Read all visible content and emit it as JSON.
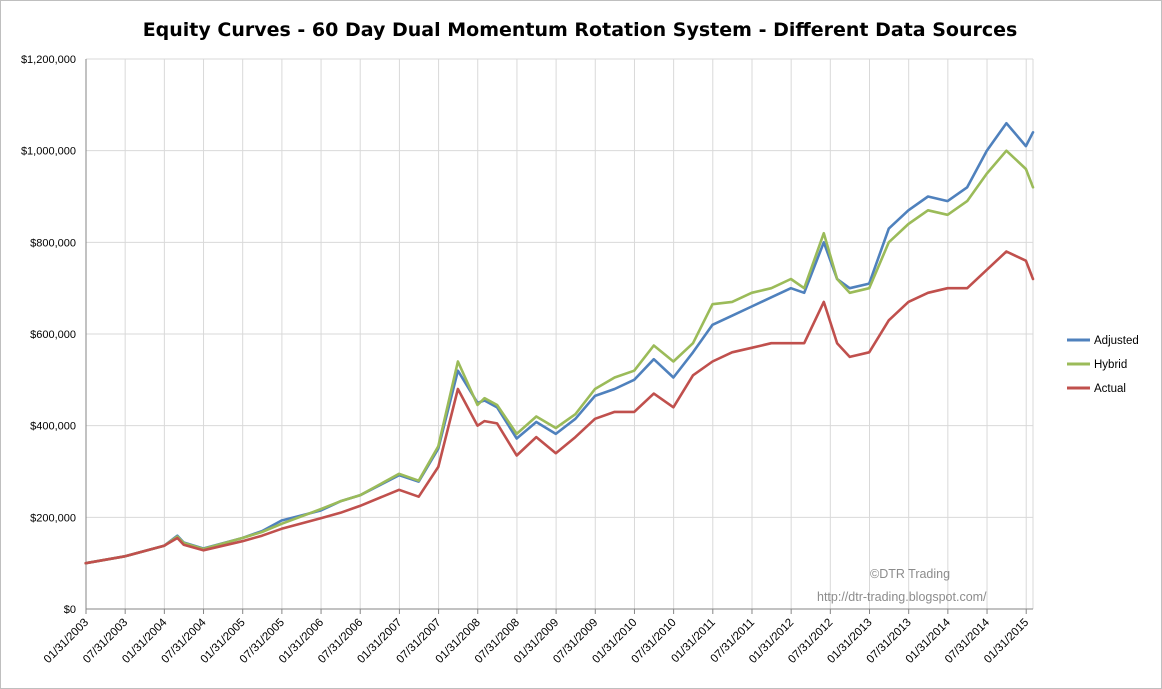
{
  "chart_data": {
    "type": "line",
    "title": "Equity Curves - 60 Day Dual Momentum Rotation System - Different Data Sources",
    "xlabel": "",
    "ylabel": "",
    "ylim": [
      0,
      1200000
    ],
    "yticks": [
      0,
      200000,
      400000,
      600000,
      800000,
      1000000,
      1200000
    ],
    "ytick_labels": [
      "$0",
      "$200,000",
      "$400,000",
      "$600,000",
      "$800,000",
      "$1,000,000",
      "$1,200,000"
    ],
    "xlim": [
      2003.0833,
      2015.17
    ],
    "xticks": [
      2003.0833,
      2003.5833,
      2004.0833,
      2004.5833,
      2005.0833,
      2005.5833,
      2006.0833,
      2006.5833,
      2007.0833,
      2007.5833,
      2008.0833,
      2008.5833,
      2009.0833,
      2009.5833,
      2010.0833,
      2010.5833,
      2011.0833,
      2011.5833,
      2012.0833,
      2012.5833,
      2013.0833,
      2013.5833,
      2014.0833,
      2014.5833,
      2015.0833
    ],
    "xtick_labels": [
      "01/31/2003",
      "07/31/2003",
      "01/31/2004",
      "07/31/2004",
      "01/31/2005",
      "07/31/2005",
      "01/31/2006",
      "07/31/2006",
      "01/31/2007",
      "07/31/2007",
      "01/31/2008",
      "07/31/2008",
      "01/31/2009",
      "07/31/2009",
      "01/31/2010",
      "07/31/2010",
      "01/31/2011",
      "07/31/2011",
      "01/31/2012",
      "07/31/2012",
      "01/31/2013",
      "07/31/2013",
      "01/31/2014",
      "07/31/2014",
      "01/31/2015"
    ],
    "grid": true,
    "legend_position": "right",
    "x": [
      2003.08,
      2003.58,
      2004.08,
      2004.25,
      2004.33,
      2004.58,
      2005.08,
      2005.33,
      2005.58,
      2006.08,
      2006.33,
      2006.58,
      2007.08,
      2007.33,
      2007.58,
      2007.83,
      2008.08,
      2008.17,
      2008.33,
      2008.58,
      2008.83,
      2009.08,
      2009.33,
      2009.58,
      2009.83,
      2010.08,
      2010.33,
      2010.58,
      2010.83,
      2011.08,
      2011.33,
      2011.58,
      2011.83,
      2012.08,
      2012.25,
      2012.5,
      2012.67,
      2012.83,
      2013.08,
      2013.33,
      2013.58,
      2013.83,
      2014.08,
      2014.33,
      2014.58,
      2014.83,
      2015.08,
      2015.17
    ],
    "series": [
      {
        "name": "Adjusted",
        "color": "#4f81bd",
        "values": [
          100000,
          115000,
          138000,
          160000,
          145000,
          132000,
          155000,
          170000,
          193000,
          215000,
          235000,
          248000,
          292000,
          278000,
          350000,
          520000,
          450000,
          455000,
          440000,
          372000,
          408000,
          382000,
          415000,
          465000,
          480000,
          500000,
          545000,
          505000,
          560000,
          620000,
          640000,
          660000,
          680000,
          700000,
          690000,
          800000,
          720000,
          700000,
          710000,
          830000,
          870000,
          900000,
          890000,
          920000,
          1000000,
          1060000,
          1010000,
          1040000
        ]
      },
      {
        "name": "Hybrid",
        "color": "#9bbb59",
        "values": [
          100000,
          115000,
          138000,
          158000,
          144000,
          131000,
          155000,
          168000,
          186000,
          218000,
          235000,
          248000,
          295000,
          280000,
          355000,
          540000,
          445000,
          460000,
          445000,
          382000,
          420000,
          395000,
          425000,
          480000,
          505000,
          520000,
          575000,
          540000,
          580000,
          665000,
          670000,
          690000,
          700000,
          720000,
          700000,
          820000,
          720000,
          690000,
          700000,
          800000,
          840000,
          870000,
          860000,
          890000,
          950000,
          1000000,
          960000,
          920000
        ]
      },
      {
        "name": "Actual",
        "color": "#c0504d",
        "values": [
          100000,
          115000,
          138000,
          155000,
          140000,
          128000,
          148000,
          160000,
          175000,
          198000,
          210000,
          225000,
          260000,
          245000,
          310000,
          480000,
          400000,
          410000,
          405000,
          335000,
          375000,
          340000,
          375000,
          415000,
          430000,
          430000,
          470000,
          440000,
          510000,
          540000,
          560000,
          570000,
          580000,
          580000,
          580000,
          670000,
          580000,
          550000,
          560000,
          630000,
          670000,
          690000,
          700000,
          700000,
          740000,
          780000,
          760000,
          720000
        ]
      }
    ],
    "legend": [
      "Adjusted",
      "Hybrid",
      "Actual"
    ],
    "annotations": [
      "©DTR Trading",
      "http://dtr-trading.blogspot.com/"
    ]
  }
}
